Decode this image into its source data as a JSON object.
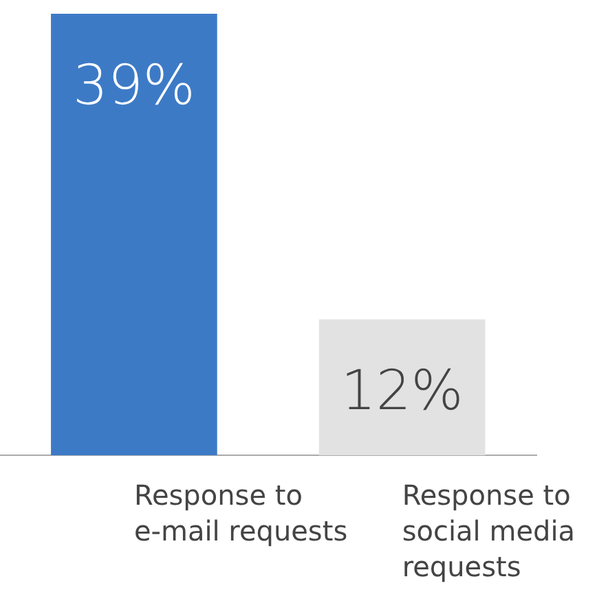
{
  "chart_data": {
    "type": "bar",
    "categories": [
      "Response to e-mail requests",
      "Response to social media requests"
    ],
    "values": [
      39,
      12
    ],
    "colors": [
      "#3d7ac6",
      "#e2e2e2"
    ],
    "value_labels": [
      "39%",
      "12%"
    ],
    "ylim": [
      0,
      39
    ],
    "grid": false,
    "legend": false,
    "tick_labels": "x"
  }
}
